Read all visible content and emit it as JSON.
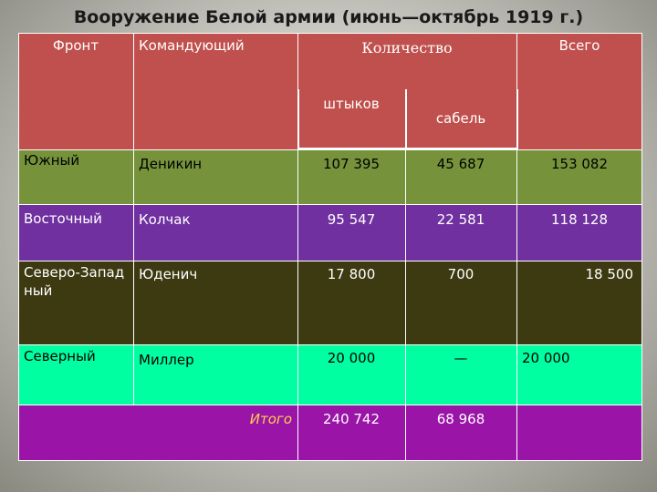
{
  "title": "Вооружение Белой армии (июнь—октябрь 1919 г.)",
  "headers": {
    "front": "Фронт",
    "commander": "Командующий",
    "quantity": "Количество",
    "total": "Всего",
    "bayonets": "штыков",
    "sabres": "сабель"
  },
  "rows": [
    {
      "front": "Южный",
      "commander": "Деникин",
      "bayonets": "107 395",
      "sabres": "45 687",
      "total": "153 082"
    },
    {
      "front": "Восточный",
      "commander": "Колчак",
      "bayonets": "95 547",
      "sabres": "22 581",
      "total": "118 128"
    },
    {
      "front": "Северо-Западный",
      "commander": "Юденич",
      "bayonets": "17 800",
      "sabres": "700",
      "total": "18 500"
    },
    {
      "front": "Северный",
      "commander": "Миллер",
      "bayonets": "20 000",
      "sabres": "—",
      "total": "20 000"
    }
  ],
  "total_row": {
    "label": "Итого",
    "bayonets": "240 742",
    "sabres": "68 968",
    "total": ""
  },
  "colors": {
    "header": "#c0504d",
    "south": "#76933c",
    "east": "#7030a0",
    "northwest": "#3d3a12",
    "north": "#00ffa0",
    "total": "#9a14a8",
    "total_label": "#ffd24d"
  }
}
